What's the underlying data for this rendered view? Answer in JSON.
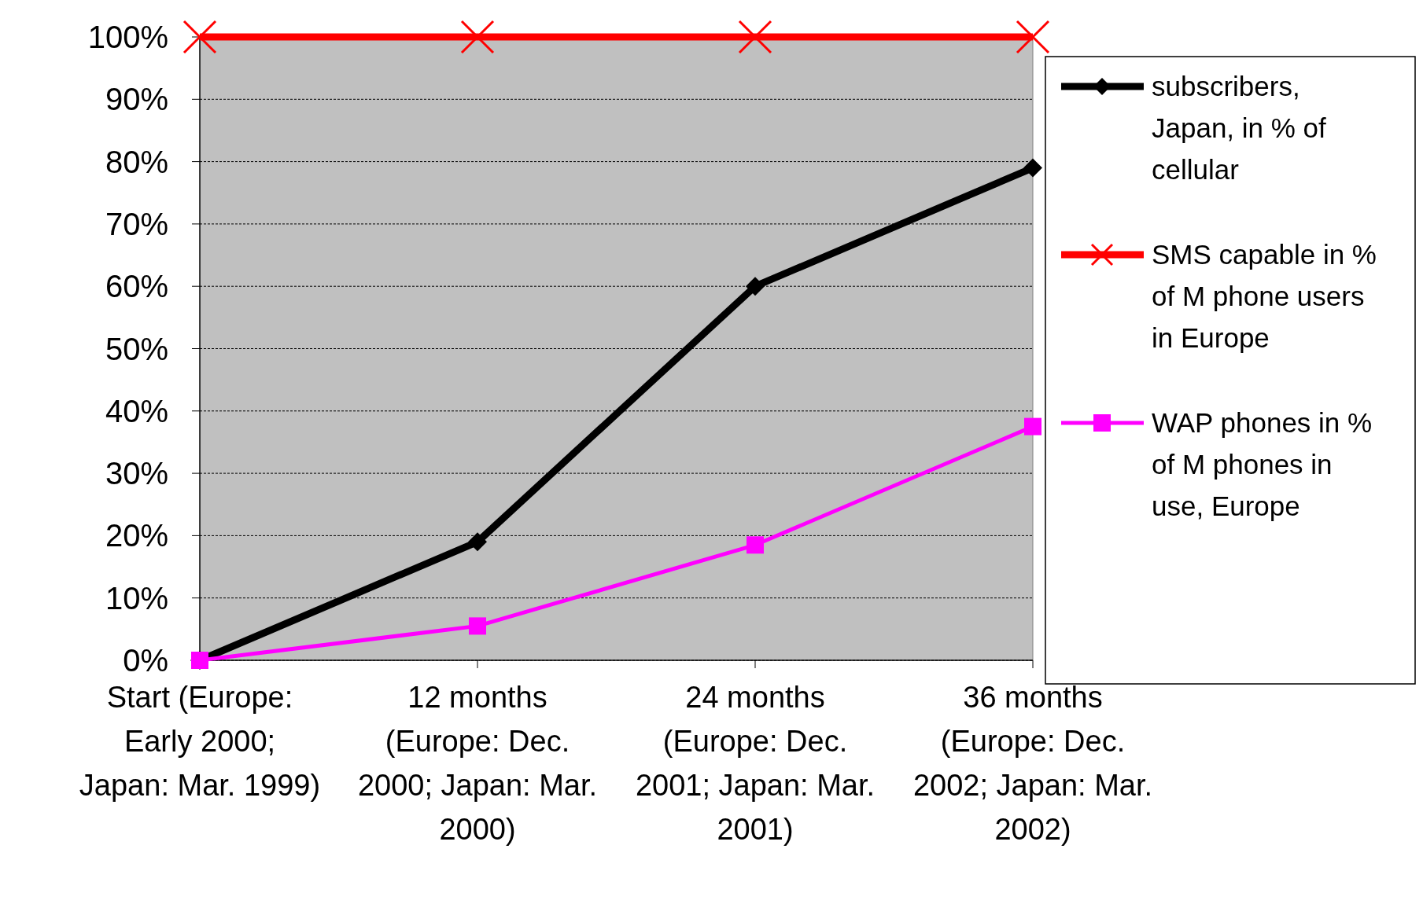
{
  "chart_data": {
    "type": "line",
    "categories": [
      "Start (Europe: Early 2000; Japan: Mar. 1999)",
      "12 months (Europe: Dec. 2000; Japan: Mar. 2000)",
      "24 months (Europe: Dec. 2001; Japan: Mar. 2001)",
      "36 months (Europe: Dec. 2002; Japan: Mar. 2002)"
    ],
    "series": [
      {
        "name": "subscribers, Japan, in % of cellular",
        "color": "#000000",
        "marker": "diamond",
        "values": [
          0,
          19,
          60,
          79
        ]
      },
      {
        "name": "SMS capable in % of M phone users in Europe",
        "color": "#ff0000",
        "marker": "cross",
        "values": [
          100,
          100,
          100,
          100
        ]
      },
      {
        "name": "WAP phones in % of M phones in use, Europe",
        "color": "#ff00ff",
        "marker": "square",
        "values": [
          0,
          5.5,
          18.5,
          37.5
        ]
      }
    ],
    "ylim": [
      0,
      100
    ],
    "yticks": [
      {
        "value": 0,
        "label": "0%"
      },
      {
        "value": 10,
        "label": "10%"
      },
      {
        "value": 20,
        "label": "20%"
      },
      {
        "value": 30,
        "label": "30%"
      },
      {
        "value": 40,
        "label": "40%"
      },
      {
        "value": 50,
        "label": "50%"
      },
      {
        "value": 60,
        "label": "60%"
      },
      {
        "value": 70,
        "label": "70%"
      },
      {
        "value": 80,
        "label": "80%"
      },
      {
        "value": 90,
        "label": "90%"
      },
      {
        "value": 100,
        "label": "100%"
      }
    ],
    "grid": "y",
    "legend": "right"
  }
}
